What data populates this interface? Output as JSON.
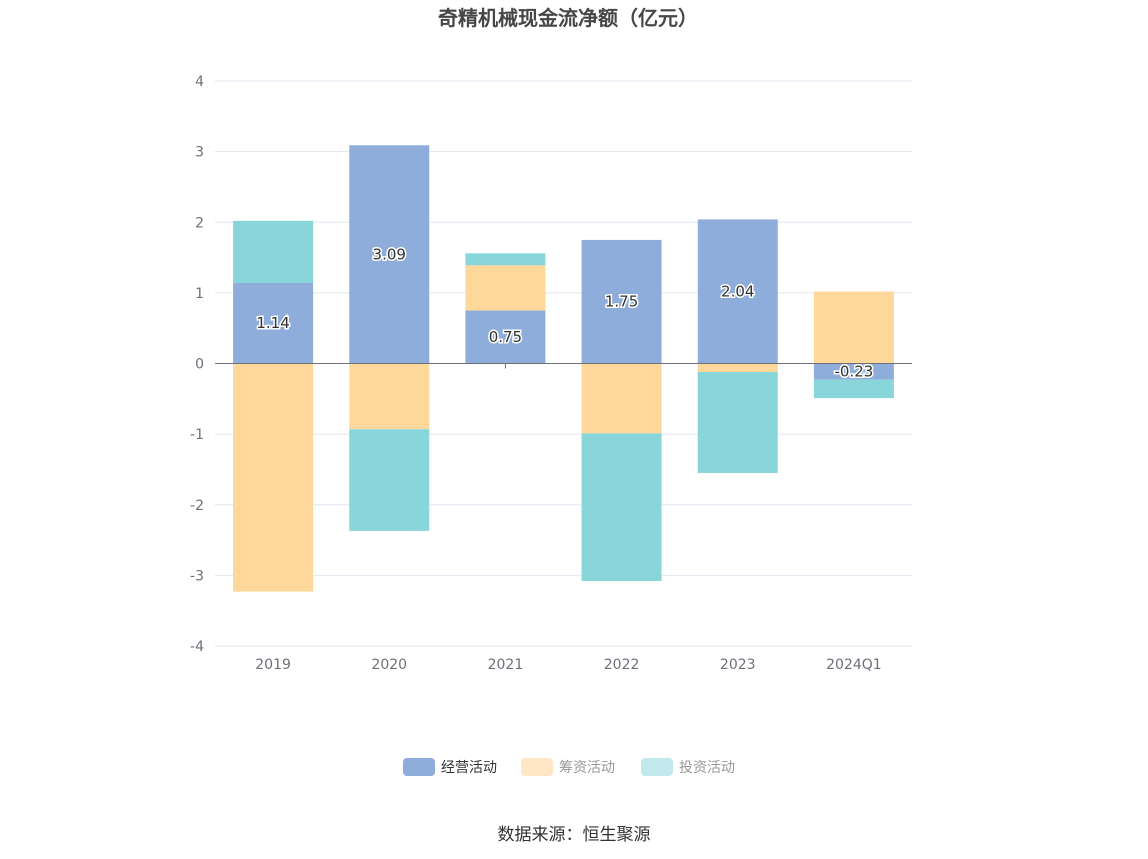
{
  "chart_data": {
    "type": "bar",
    "stacked": true,
    "title": "奇精机械现金流净额（亿元）",
    "categories": [
      "2019",
      "2020",
      "2021",
      "2022",
      "2023",
      "2024Q1"
    ],
    "ylim": [
      -4,
      4
    ],
    "yticks": [
      "4",
      "3",
      "2",
      "1",
      "0",
      "-1",
      "-2",
      "-3",
      "-4"
    ],
    "grid": true,
    "legend_position": "bottom",
    "series": [
      {
        "name": "经营活动",
        "color": "#8eadda",
        "values": [
          1.14,
          3.09,
          0.75,
          1.75,
          2.04,
          -0.23
        ],
        "labels": [
          "1.14",
          "3.09",
          "0.75",
          "1.75",
          "2.04",
          "-0.23"
        ]
      },
      {
        "name": "筹资活动",
        "color": "#fed89a",
        "values": [
          -3.23,
          -0.93,
          0.64,
          -0.99,
          -0.12,
          1.02
        ]
      },
      {
        "name": "投资活动",
        "color": "#88d6da",
        "values": [
          0.88,
          -1.44,
          0.17,
          -2.09,
          -1.43,
          -0.26
        ]
      }
    ]
  },
  "legend": {
    "items": [
      {
        "label": "经营活动",
        "color": "#8eadda",
        "active": true
      },
      {
        "label": "筹资活动",
        "color": "#ffe7c6",
        "active": false
      },
      {
        "label": "投资活动",
        "color": "#c2e9eb",
        "active": false
      }
    ]
  },
  "source": "数据来源：恒生聚源"
}
